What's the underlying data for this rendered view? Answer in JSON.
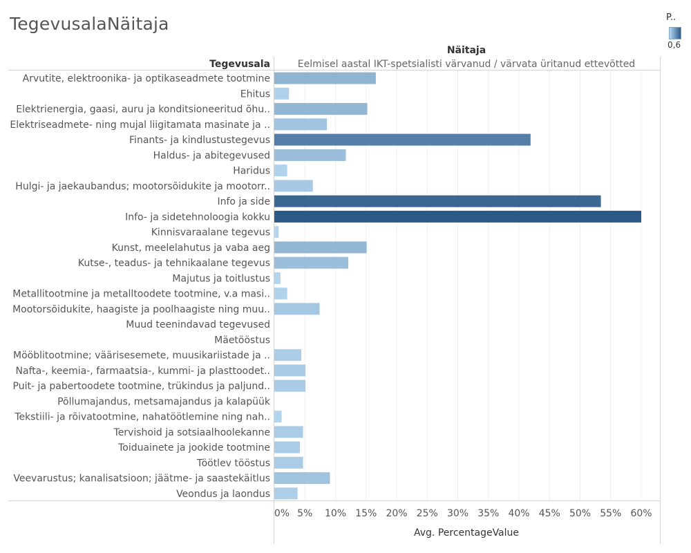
{
  "title": "TegevusalaNäitaja",
  "legend": {
    "title": "P..",
    "label": "0,6"
  },
  "headers": {
    "row_field": "Tegevusala",
    "column_field": "Näitaja",
    "column_value": "Eelmisel aastal IKT-spetsialisti värvanud / värvata üritanud ettevõtted"
  },
  "colors": {
    "min": "#b5d6ef",
    "max": "#2b5a87"
  },
  "chart_data": {
    "type": "bar",
    "orientation": "horizontal",
    "xlabel": "Avg. PercentageValue",
    "xlim": [
      0,
      60
    ],
    "ticks": [
      0,
      5,
      10,
      15,
      20,
      25,
      30,
      35,
      40,
      45,
      50,
      55,
      60
    ],
    "tick_labels": [
      "0%",
      "5%",
      "10%",
      "15%",
      "20%",
      "25%",
      "30%",
      "35%",
      "40%",
      "45%",
      "50%",
      "55%",
      "60%"
    ],
    "grid": true,
    "categories": [
      "Arvutite, elektroonika- ja optikaseadmete tootmine",
      "Ehitus",
      "Elektrienergia, gaasi, auru ja konditsioneeritud õhu..",
      "Elektriseadmete- ning mujal liigitamata masinate ja ..",
      "Finants- ja kindlustustegevus",
      "Haldus- ja abitegevused",
      "Haridus",
      "Hulgi- ja jaekaubandus; mootorsõidukite ja mootorr..",
      "Info ja side",
      "Info- ja sidetehnoloogia kokku",
      "Kinnisvaraalane tegevus",
      "Kunst, meelelahutus ja vaba aeg",
      "Kutse-, teadus- ja tehnikaalane tegevus",
      "Majutus ja toitlustus",
      "Metallitootmine ja metalltoodete tootmine, v.a masi..",
      "Mootorsõidukite, haagiste ja poolhaagiste ning muu..",
      "Muud teenindavad tegevused",
      "Mäetööstus",
      "Mööblitootmine; väärisesemete, muusikariistade ja ..",
      "Nafta-, keemia-, farmaatsia-, kummi- ja plasttoodet..",
      "Puit- ja pabertoodete tootmine, trükindus ja paljund..",
      "Põllumajandus, metsamajandus ja kalapüük",
      "Tekstiili- ja rõivatootmine, nahatöötlemine ning nah..",
      "Tervishoid ja sotsiaalhoolekanne",
      "Toiduainete ja jookide tootmine",
      "Töötlev tööstus",
      "Veevarustus; kanalisatsioon; jäätme- ja saastekäitlus",
      "Veondus ja laondus"
    ],
    "values": [
      16.6,
      2.4,
      15.2,
      8.6,
      41.9,
      11.7,
      2.1,
      6.3,
      53.4,
      60.0,
      0.7,
      15.1,
      12.1,
      1.0,
      2.1,
      7.4,
      0,
      0,
      4.4,
      5.1,
      5.1,
      0,
      1.2,
      4.7,
      4.2,
      4.7,
      9.1,
      3.8
    ]
  }
}
